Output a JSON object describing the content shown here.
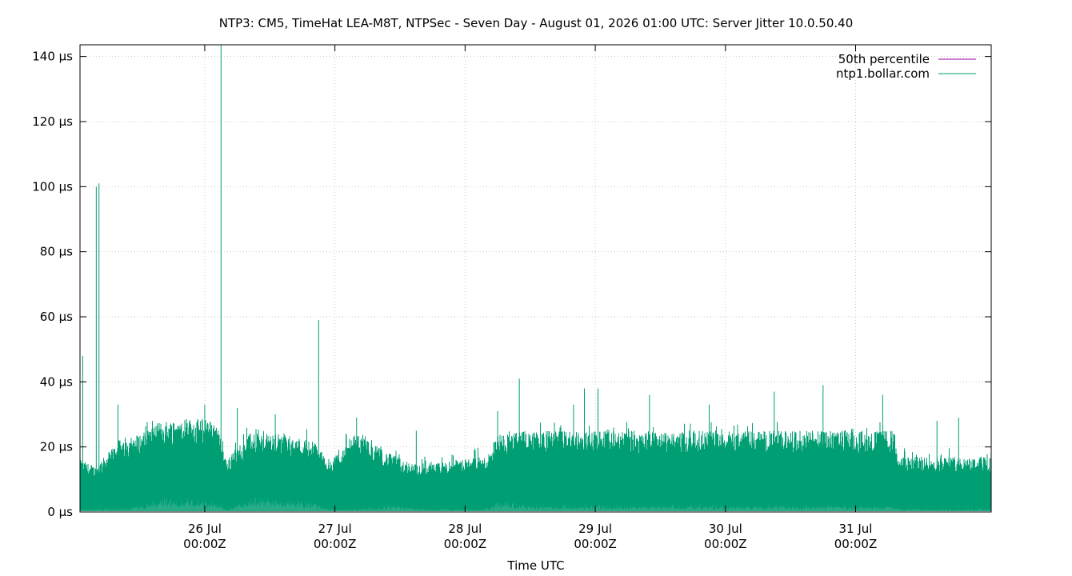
{
  "chart_data": {
    "type": "area",
    "title": "NTP3: CM5, TimeHat LEA-M8T, NTPSec - Seven Day - August 01, 2026 01:00 UTC: Server Jitter 10.0.50.40",
    "xlabel": "Time UTC",
    "ylabel": "",
    "y_unit": "µs",
    "ylim": [
      0,
      140
    ],
    "xlim": [
      "2026-07-25T01:00Z",
      "2026-08-01T01:00Z"
    ],
    "grid": true,
    "legend_position": "top-right",
    "y_ticks": [
      {
        "value": 0,
        "label": "0 µs"
      },
      {
        "value": 20,
        "label": "20 µs"
      },
      {
        "value": 40,
        "label": "40 µs"
      },
      {
        "value": 60,
        "label": "60 µs"
      },
      {
        "value": 80,
        "label": "80 µs"
      },
      {
        "value": 100,
        "label": "100 µs"
      },
      {
        "value": 120,
        "label": "120 µs"
      },
      {
        "value": 140,
        "label": "140 µs"
      }
    ],
    "x_ticks": [
      {
        "value": "2026-07-26T00:00Z",
        "label_line1": "26 Jul",
        "label_line2": "00:00Z"
      },
      {
        "value": "2026-07-27T00:00Z",
        "label_line1": "27 Jul",
        "label_line2": "00:00Z"
      },
      {
        "value": "2026-07-28T00:00Z",
        "label_line1": "28 Jul",
        "label_line2": "00:00Z"
      },
      {
        "value": "2026-07-29T00:00Z",
        "label_line1": "29 Jul",
        "label_line2": "00:00Z"
      },
      {
        "value": "2026-07-30T00:00Z",
        "label_line1": "30 Jul",
        "label_line2": "00:00Z"
      },
      {
        "value": "2026-07-31T00:00Z",
        "label_line1": "31 Jul",
        "label_line2": "00:00Z"
      }
    ],
    "series": [
      {
        "name": "50th percentile",
        "color": "#94009f",
        "values": []
      },
      {
        "name": "ntp1.bollar.com",
        "color": "#009e73",
        "envelope": [
          {
            "x": "2026-07-25T01:00Z",
            "low": 1,
            "high": 16
          },
          {
            "x": "2026-07-25T04:00Z",
            "low": 1,
            "high": 14
          },
          {
            "x": "2026-07-25T08:00Z",
            "low": 1,
            "high": 22
          },
          {
            "x": "2026-07-25T12:00Z",
            "low": 2,
            "high": 24
          },
          {
            "x": "2026-07-25T16:00Z",
            "low": 4,
            "high": 28
          },
          {
            "x": "2026-07-25T20:00Z",
            "low": 4,
            "high": 29
          },
          {
            "x": "2026-07-26T02:00Z",
            "low": 3,
            "high": 28
          },
          {
            "x": "2026-07-26T04:00Z",
            "low": 1,
            "high": 16
          },
          {
            "x": "2026-07-26T08:00Z",
            "low": 4,
            "high": 24
          },
          {
            "x": "2026-07-26T14:00Z",
            "low": 4,
            "high": 24
          },
          {
            "x": "2026-07-26T20:00Z",
            "low": 3,
            "high": 22
          },
          {
            "x": "2026-07-26T23:00Z",
            "low": 1,
            "high": 16
          },
          {
            "x": "2026-07-27T04:00Z",
            "low": 1,
            "high": 24
          },
          {
            "x": "2026-07-27T10:00Z",
            "low": 2,
            "high": 18
          },
          {
            "x": "2026-07-27T16:00Z",
            "low": 1,
            "high": 14
          },
          {
            "x": "2026-07-27T22:00Z",
            "low": 1,
            "high": 16
          },
          {
            "x": "2026-07-28T04:00Z",
            "low": 1,
            "high": 17
          },
          {
            "x": "2026-07-28T06:00Z",
            "low": 3,
            "high": 24
          },
          {
            "x": "2026-07-28T12:00Z",
            "low": 2,
            "high": 25
          },
          {
            "x": "2026-07-29T00:00Z",
            "low": 2,
            "high": 25
          },
          {
            "x": "2026-07-29T12:00Z",
            "low": 2,
            "high": 25
          },
          {
            "x": "2026-07-30T00:00Z",
            "low": 2,
            "high": 25
          },
          {
            "x": "2026-07-30T12:00Z",
            "low": 2,
            "high": 25
          },
          {
            "x": "2026-07-31T00:00Z",
            "low": 2,
            "high": 25
          },
          {
            "x": "2026-07-31T07:00Z",
            "low": 2,
            "high": 25
          },
          {
            "x": "2026-07-31T08:00Z",
            "low": 1,
            "high": 17
          },
          {
            "x": "2026-07-31T16:00Z",
            "low": 1,
            "high": 17
          },
          {
            "x": "2026-08-01T01:00Z",
            "low": 1,
            "high": 17
          }
        ],
        "spikes": [
          {
            "x": "2026-07-25T01:30Z",
            "y": 48
          },
          {
            "x": "2026-07-25T04:00Z",
            "y": 100
          },
          {
            "x": "2026-07-25T04:30Z",
            "y": 101
          },
          {
            "x": "2026-07-25T08:00Z",
            "y": 33
          },
          {
            "x": "2026-07-26T00:00Z",
            "y": 33
          },
          {
            "x": "2026-07-26T03:00Z",
            "y": 145
          },
          {
            "x": "2026-07-26T06:00Z",
            "y": 32
          },
          {
            "x": "2026-07-26T13:00Z",
            "y": 30
          },
          {
            "x": "2026-07-26T21:00Z",
            "y": 59
          },
          {
            "x": "2026-07-27T04:00Z",
            "y": 29
          },
          {
            "x": "2026-07-27T15:00Z",
            "y": 25
          },
          {
            "x": "2026-07-28T06:00Z",
            "y": 31
          },
          {
            "x": "2026-07-28T10:00Z",
            "y": 41
          },
          {
            "x": "2026-07-28T20:00Z",
            "y": 33
          },
          {
            "x": "2026-07-28T22:00Z",
            "y": 38
          },
          {
            "x": "2026-07-29T00:30Z",
            "y": 38
          },
          {
            "x": "2026-07-29T10:00Z",
            "y": 36
          },
          {
            "x": "2026-07-29T21:00Z",
            "y": 33
          },
          {
            "x": "2026-07-30T09:00Z",
            "y": 37
          },
          {
            "x": "2026-07-30T18:00Z",
            "y": 39
          },
          {
            "x": "2026-07-31T05:00Z",
            "y": 36
          },
          {
            "x": "2026-07-31T15:00Z",
            "y": 28
          },
          {
            "x": "2026-07-31T19:00Z",
            "y": 29
          }
        ]
      }
    ]
  }
}
